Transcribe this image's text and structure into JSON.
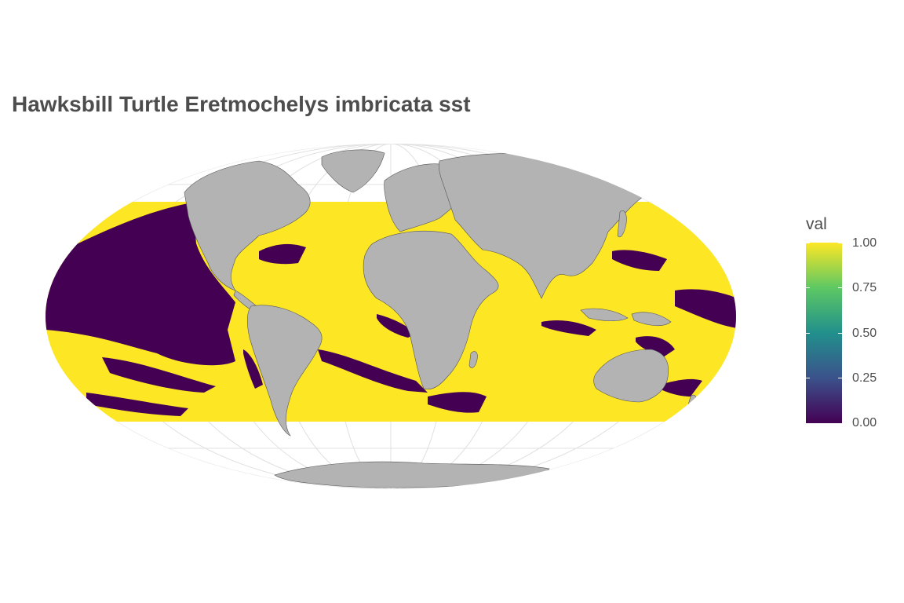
{
  "title": "Hawksbill Turtle Eretmochelys imbricata sst",
  "legend": {
    "title": "val",
    "ticks": [
      "1.00",
      "0.75",
      "0.50",
      "0.25",
      "0.00"
    ],
    "colors": {
      "low": "#440154",
      "mid": "#21908c",
      "high": "#fde725"
    }
  },
  "map": {
    "projection": "Mollweide",
    "land_color": "#b3b3b3",
    "suitable_color": "#fde725",
    "unsuitable_color": "#440154",
    "graticule_color": "#e0e0e0"
  }
}
